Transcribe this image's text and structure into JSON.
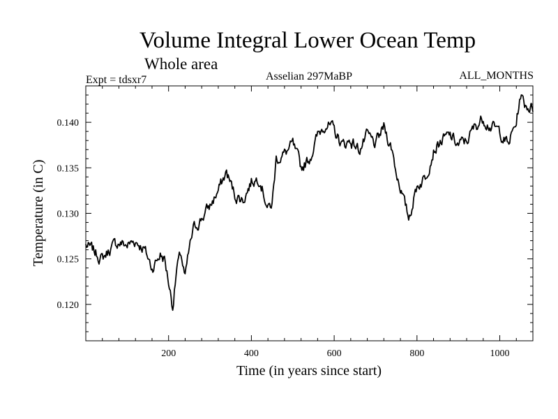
{
  "chart_data": {
    "type": "line",
    "title": "Volume Integral Lower Ocean Temp",
    "subtitle": "Whole area",
    "annotations": {
      "left": "Expt = tdsxr7",
      "center": "Asselian 297MaBP",
      "right": "ALL_MONTHS"
    },
    "xlabel": "Time (in years since start)",
    "ylabel": "Temperature (in C)",
    "xlim": [
      0,
      1080
    ],
    "ylim": [
      0.116,
      0.144
    ],
    "xticks": [
      200,
      400,
      600,
      800,
      1000
    ],
    "xtick_labels": [
      "200",
      "400",
      "600",
      "800",
      "1000"
    ],
    "yticks": [
      0.12,
      0.125,
      0.13,
      0.135,
      0.14
    ],
    "ytick_labels": [
      "0.120",
      "0.125",
      "0.130",
      "0.135",
      "0.140"
    ],
    "grid": false,
    "series": [
      {
        "name": "Volume integral lower ocean temperature",
        "color": "#000000",
        "x": [
          0,
          20,
          40,
          60,
          80,
          100,
          120,
          140,
          160,
          180,
          190,
          200,
          210,
          220,
          230,
          240,
          250,
          260,
          280,
          300,
          320,
          340,
          360,
          380,
          400,
          420,
          440,
          450,
          460,
          480,
          500,
          520,
          540,
          560,
          580,
          600,
          620,
          640,
          660,
          680,
          700,
          720,
          740,
          750,
          760,
          770,
          780,
          800,
          820,
          840,
          860,
          880,
          900,
          920,
          940,
          960,
          980,
          1000,
          1020,
          1040,
          1050,
          1060,
          1080
        ],
        "y": [
          0.1265,
          0.1258,
          0.125,
          0.1262,
          0.1268,
          0.1265,
          0.127,
          0.1262,
          0.124,
          0.1255,
          0.125,
          0.1225,
          0.1198,
          0.124,
          0.1255,
          0.1228,
          0.126,
          0.1282,
          0.1295,
          0.1308,
          0.1325,
          0.1345,
          0.132,
          0.1315,
          0.1335,
          0.134,
          0.1305,
          0.131,
          0.136,
          0.1365,
          0.1375,
          0.135,
          0.136,
          0.1385,
          0.14,
          0.139,
          0.1375,
          0.138,
          0.137,
          0.1385,
          0.1375,
          0.1395,
          0.137,
          0.1345,
          0.133,
          0.131,
          0.1295,
          0.133,
          0.134,
          0.137,
          0.138,
          0.1385,
          0.1375,
          0.138,
          0.1395,
          0.1405,
          0.1395,
          0.139,
          0.1375,
          0.14,
          0.143,
          0.142,
          0.1415
        ]
      }
    ]
  }
}
